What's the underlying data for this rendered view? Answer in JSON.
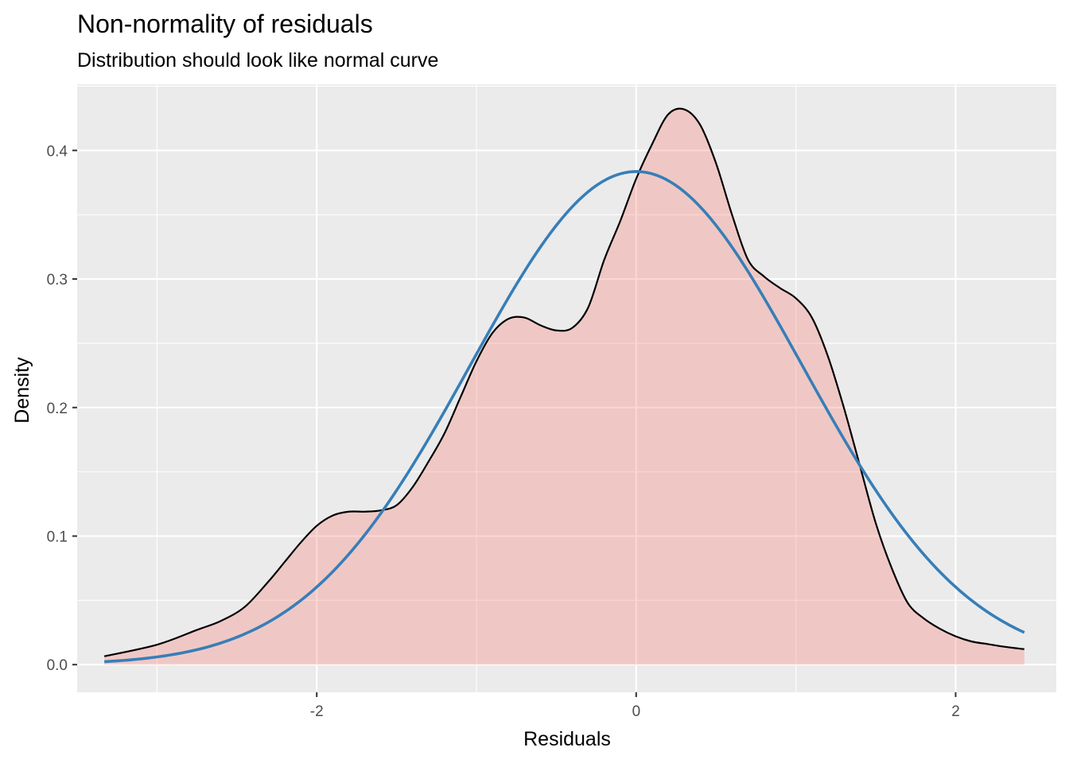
{
  "chart_data": {
    "type": "area",
    "title": "Non-normality of residuals",
    "subtitle": "Distribution should look like normal curve",
    "xlabel": "Residuals",
    "ylabel": "Density",
    "xlim": [
      -3.5,
      2.63
    ],
    "ylim": [
      -0.0215,
      0.4515
    ],
    "x_ticks": [
      -2,
      0,
      2
    ],
    "x_tick_labels": [
      "-2",
      "0",
      "2"
    ],
    "y_ticks": [
      0.0,
      0.1,
      0.2,
      0.3,
      0.4
    ],
    "y_tick_labels": [
      "0.0",
      "0.1",
      "0.2",
      "0.3",
      "0.4"
    ],
    "grid": true,
    "legend": "none",
    "colors": {
      "panel_background": "#ebebeb",
      "grid": "#ffffff",
      "density_fill": "#f8766d",
      "density_fill_alpha": 0.3,
      "density_line": "#000000",
      "normal_curve": "#377eb8"
    },
    "series": [
      {
        "kind": "density",
        "x": [
          -3.33,
          -3.0,
          -2.75,
          -2.6,
          -2.45,
          -2.3,
          -2.2,
          -2.1,
          -2.0,
          -1.9,
          -1.8,
          -1.7,
          -1.6,
          -1.5,
          -1.4,
          -1.3,
          -1.2,
          -1.1,
          -1.0,
          -0.9,
          -0.8,
          -0.7,
          -0.6,
          -0.5,
          -0.4,
          -0.3,
          -0.2,
          -0.1,
          0.0,
          0.1,
          0.2,
          0.3,
          0.4,
          0.5,
          0.6,
          0.7,
          0.8,
          0.9,
          1.0,
          1.1,
          1.2,
          1.3,
          1.4,
          1.5,
          1.6,
          1.7,
          1.8,
          1.9,
          2.0,
          2.1,
          2.2,
          2.3,
          2.43
        ],
        "y": [
          0.0065,
          0.0155,
          0.027,
          0.034,
          0.045,
          0.065,
          0.08,
          0.095,
          0.108,
          0.116,
          0.119,
          0.119,
          0.12,
          0.124,
          0.138,
          0.158,
          0.18,
          0.208,
          0.236,
          0.258,
          0.269,
          0.27,
          0.264,
          0.26,
          0.262,
          0.278,
          0.315,
          0.345,
          0.378,
          0.405,
          0.428,
          0.432,
          0.42,
          0.39,
          0.35,
          0.315,
          0.302,
          0.293,
          0.285,
          0.27,
          0.24,
          0.2,
          0.155,
          0.11,
          0.075,
          0.048,
          0.036,
          0.028,
          0.022,
          0.018,
          0.016,
          0.014,
          0.012
        ]
      },
      {
        "kind": "normal",
        "mean": 0.0,
        "sd": 1.04,
        "x_range": [
          -3.33,
          2.43
        ]
      }
    ]
  }
}
